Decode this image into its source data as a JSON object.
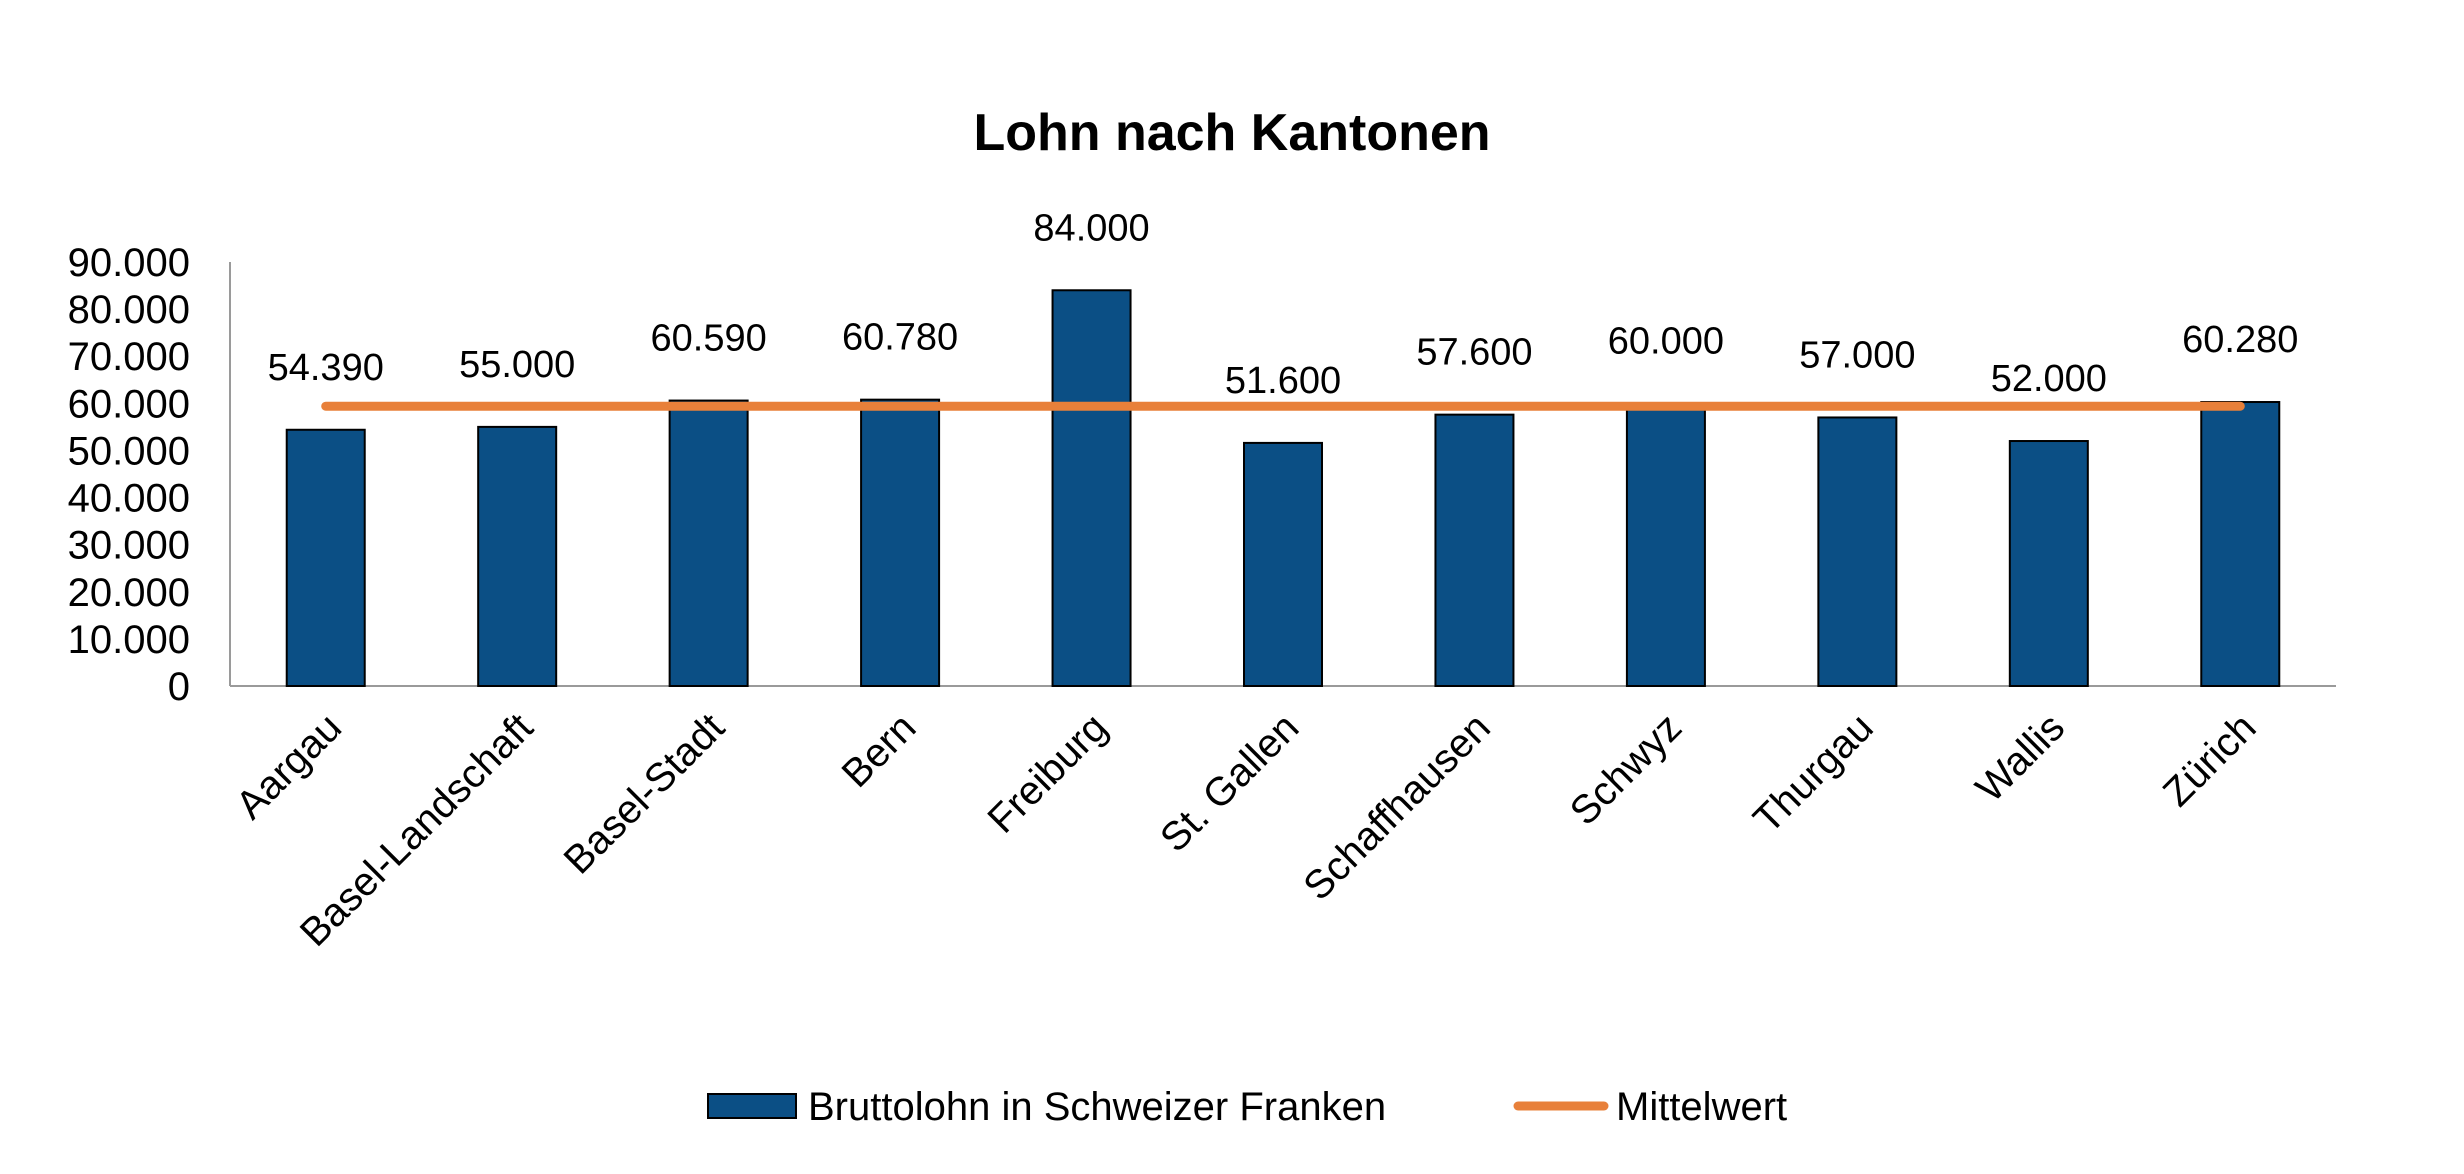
{
  "chart_data": {
    "type": "bar",
    "title": "Lohn nach Kantonen",
    "categories": [
      "Aargau",
      "Basel-Landschaft",
      "Basel-Stadt",
      "Bern",
      "Freiburg",
      "St. Gallen",
      "Schaffhausen",
      "Schwyz",
      "Thurgau",
      "Wallis",
      "Zürich"
    ],
    "series": [
      {
        "name": "Bruttolohn in Schweizer Franken",
        "type": "bar",
        "color": "#0b4f85",
        "values": [
          54390,
          55000,
          60590,
          60780,
          84000,
          51600,
          57600,
          60000,
          57000,
          52000,
          60280
        ],
        "data_labels": [
          "54.390",
          "55.000",
          "60.590",
          "60.780",
          "84.000",
          "51.600",
          "57.600",
          "60.000",
          "57.000",
          "52.000",
          "60.280"
        ]
      },
      {
        "name": "Mittelwert",
        "type": "line",
        "color": "#e8803a",
        "values": [
          59385,
          59385,
          59385,
          59385,
          59385,
          59385,
          59385,
          59385,
          59385,
          59385,
          59385
        ]
      }
    ],
    "ylim": [
      0,
      90000
    ],
    "y_ticks": [
      0,
      10000,
      20000,
      30000,
      40000,
      50000,
      60000,
      70000,
      80000,
      90000
    ],
    "y_tick_labels": [
      "0",
      "10.000",
      "20.000",
      "30.000",
      "40.000",
      "50.000",
      "60.000",
      "70.000",
      "80.000",
      "90.000"
    ],
    "xlabel": "",
    "ylabel": "",
    "grid": false,
    "legend_position": "bottom"
  }
}
